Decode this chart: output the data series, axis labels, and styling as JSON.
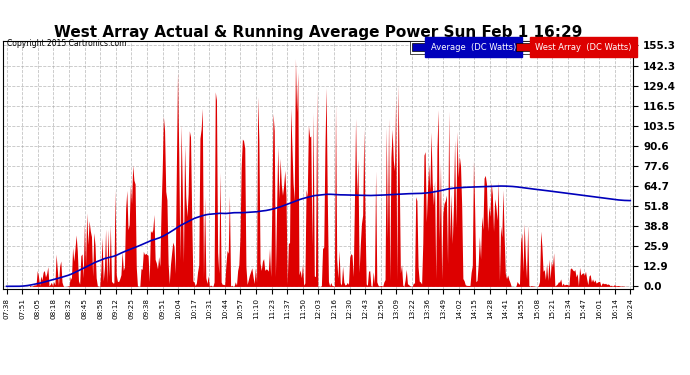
{
  "title": "West Array Actual & Running Average Power Sun Feb 1 16:29",
  "copyright": "Copyright 2015 Cartronics.com",
  "ylabel_right_ticks": [
    0.0,
    12.9,
    25.9,
    38.8,
    51.8,
    64.7,
    77.6,
    90.6,
    103.5,
    116.5,
    129.4,
    142.3,
    155.3
  ],
  "ymax": 158.0,
  "ymin": -1.5,
  "legend_avg_label": "Average  (DC Watts)",
  "legend_west_label": "West Array  (DC Watts)",
  "avg_color": "#0000bb",
  "west_color": "#dd0000",
  "bg_color": "#ffffff",
  "grid_color": "#aaaaaa",
  "title_fontsize": 11,
  "x_tick_labels": [
    "07:38",
    "07:51",
    "08:05",
    "08:18",
    "08:32",
    "08:45",
    "08:58",
    "09:12",
    "09:25",
    "09:38",
    "09:51",
    "10:04",
    "10:17",
    "10:31",
    "10:44",
    "10:57",
    "11:10",
    "11:23",
    "11:37",
    "11:50",
    "12:03",
    "12:16",
    "12:30",
    "12:43",
    "12:56",
    "13:09",
    "13:22",
    "13:36",
    "13:49",
    "14:02",
    "14:15",
    "14:28",
    "14:41",
    "14:55",
    "15:08",
    "15:21",
    "15:34",
    "15:47",
    "16:01",
    "16:14",
    "16:24"
  ]
}
